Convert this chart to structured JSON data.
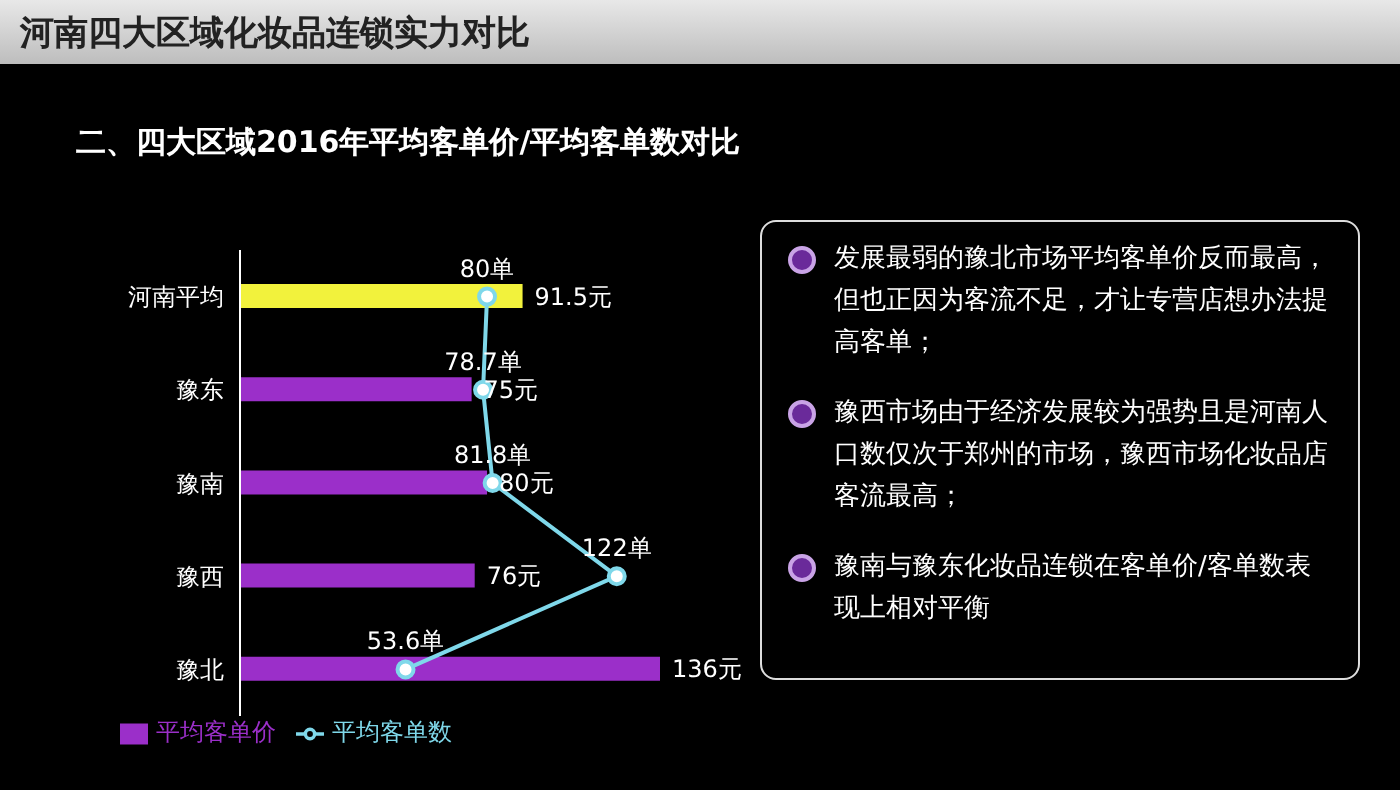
{
  "chart_data": {
    "type": "bar",
    "orientation": "horizontal",
    "title": "河南四大区域化妆品连锁实力对比",
    "subtitle": "二、四大区域2016年平均客单价/平均客单数对比",
    "categories": [
      "河南平均",
      "豫东",
      "豫南",
      "豫西",
      "豫北"
    ],
    "series": [
      {
        "name": "平均客单价",
        "color": "#9b2fc9",
        "colors": [
          "#f2f23c",
          "#9b2fc9",
          "#9b2fc9",
          "#9b2fc9",
          "#9b2fc9"
        ],
        "values": [
          91.5,
          75,
          80,
          76,
          136
        ],
        "value_labels": [
          "91.5元",
          "75元",
          "80元",
          "76元",
          "136元"
        ]
      },
      {
        "type": "line",
        "name": "平均客单数",
        "color": "#7fd8ea",
        "marker": "circle",
        "values": [
          80,
          78.7,
          81.8,
          122,
          53.6
        ],
        "value_labels": [
          "80单",
          "78.7单",
          "81.8单",
          "122单",
          "53.6单"
        ]
      }
    ],
    "legend": "bottom left",
    "annotations": [
      "发展最弱的豫北市场平均客单价反而最高，但也正因为客流不足，才让专营店想办法提高客单；",
      "豫西市场由于经济发展较为强势且是河南人口数仅次于郑州的市场，豫西市场化妆品店客流最高；",
      "豫南与豫东化妆品连锁在客单价/客单数表现上相对平衡"
    ]
  }
}
